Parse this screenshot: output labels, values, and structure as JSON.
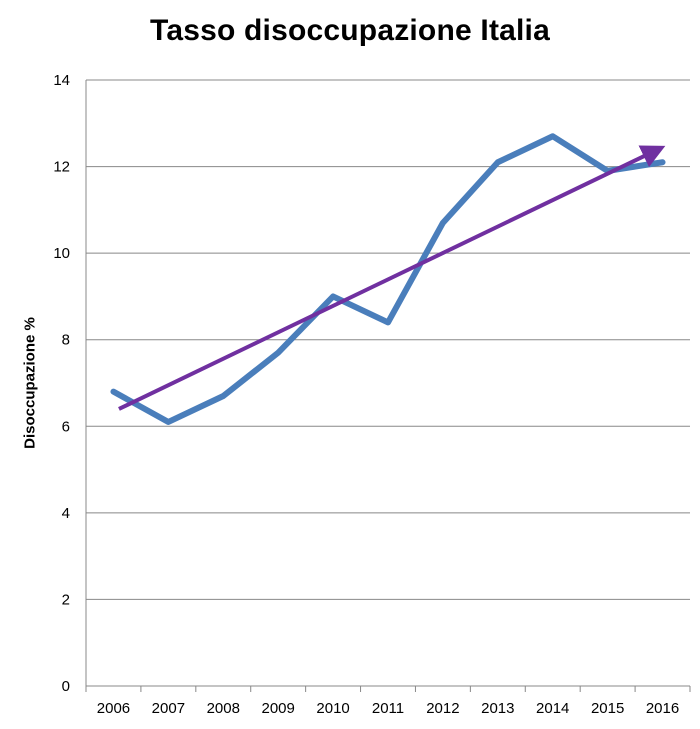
{
  "chart_data": {
    "type": "line",
    "title": "Tasso disoccupazione Italia",
    "xlabel": "",
    "ylabel": "Disoccupazione %",
    "categories": [
      "2006",
      "2007",
      "2008",
      "2009",
      "2010",
      "2011",
      "2012",
      "2013",
      "2014",
      "2015",
      "2016"
    ],
    "series": [
      {
        "values": [
          6.8,
          6.1,
          6.7,
          7.7,
          9.0,
          8.4,
          10.7,
          12.1,
          12.7,
          11.9,
          12.1
        ],
        "color": "#4a7ebb"
      }
    ],
    "trend_arrow": {
      "from": [
        2006.1,
        6.4
      ],
      "to": [
        2016,
        12.45
      ],
      "color": "#7030a0"
    },
    "ylim": [
      0,
      14
    ],
    "yticks": [
      0,
      2,
      4,
      6,
      8,
      10,
      12,
      14
    ],
    "grid": true,
    "legend": "none"
  }
}
